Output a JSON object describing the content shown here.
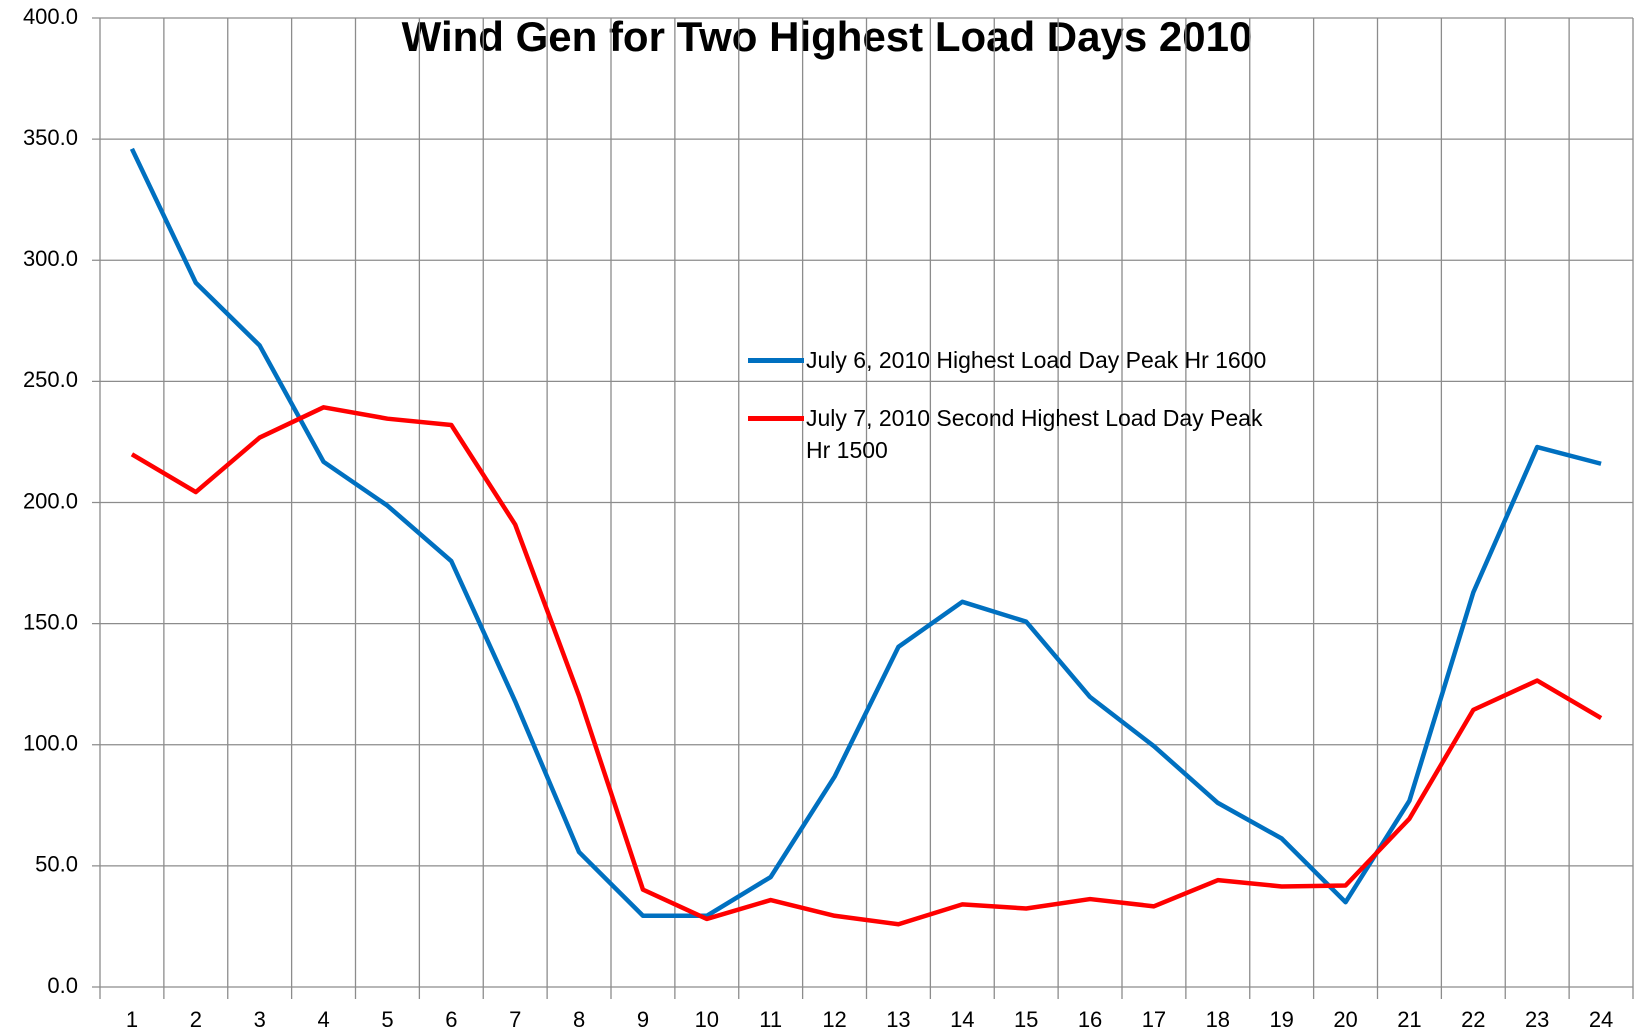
{
  "chart_data": {
    "type": "line",
    "title": "Wind Gen for Two Highest Load Days 2010",
    "categories": [
      "1",
      "2",
      "3",
      "4",
      "5",
      "6",
      "7",
      "8",
      "9",
      "10",
      "11",
      "12",
      "13",
      "14",
      "15",
      "16",
      "17",
      "18",
      "19",
      "20",
      "21",
      "22",
      "23",
      "24"
    ],
    "series": [
      {
        "name": "July 6, 2010 Highest Load Day Peak Hr 1600",
        "color": "#0070c0",
        "values": [
          346,
          290.7,
          264.8,
          216.8,
          198.7,
          175.8,
          117.9,
          55.7,
          29.4,
          29.4,
          45.4,
          86.8,
          140.4,
          159,
          150.8,
          119.7,
          99.4,
          76,
          61.3,
          35,
          76.9,
          162.9,
          222.9,
          216
        ]
      },
      {
        "name": "July 7, 2010 Second Highest Load Day Peak Hr 1500",
        "color": "#ff0000",
        "values": [
          219.9,
          204.3,
          226.8,
          239.3,
          234.6,
          232,
          190.9,
          120.1,
          40.2,
          28.1,
          35.9,
          29.4,
          25.9,
          34.1,
          32.4,
          36.3,
          33.3,
          44.1,
          41.5,
          41.9,
          69.5,
          114.4,
          126.5,
          111
        ]
      }
    ],
    "ylim": [
      0,
      400
    ],
    "yticks": [
      {
        "value": 0,
        "label": "0.0"
      },
      {
        "value": 50,
        "label": "50.0"
      },
      {
        "value": 100,
        "label": "100.0"
      },
      {
        "value": 150,
        "label": "150.0"
      },
      {
        "value": 200,
        "label": "200.0"
      },
      {
        "value": 250,
        "label": "250.0"
      },
      {
        "value": 300,
        "label": "300.0"
      },
      {
        "value": 350,
        "label": "350.0"
      },
      {
        "value": 400,
        "label": "400.0"
      }
    ],
    "grid": true
  }
}
